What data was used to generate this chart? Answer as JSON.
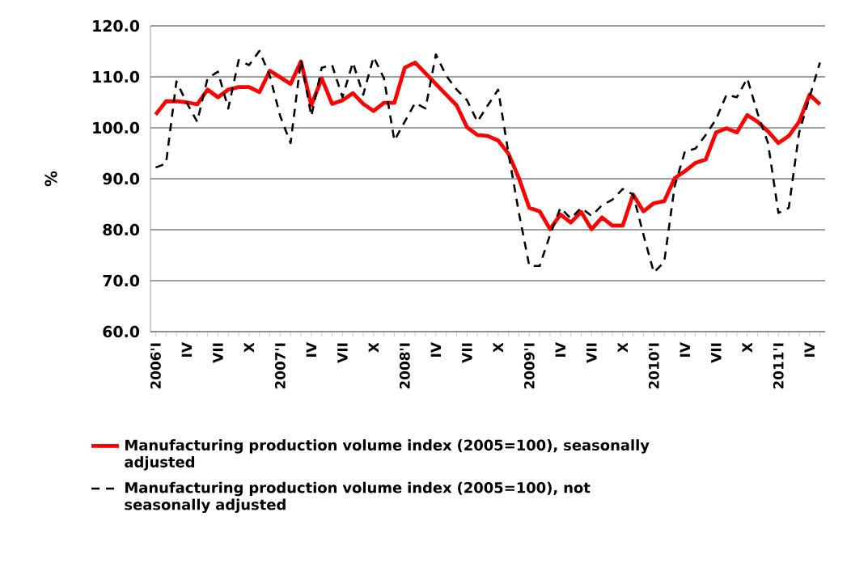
{
  "chart_data": {
    "type": "line",
    "ylabel": "%",
    "categories": [
      "2006'I",
      null,
      null,
      "IV",
      null,
      null,
      "VII",
      null,
      null,
      "X",
      null,
      null,
      "2007'I",
      null,
      null,
      "IV",
      null,
      null,
      "VII",
      null,
      null,
      "X",
      null,
      null,
      "2008'I",
      null,
      null,
      "IV",
      null,
      null,
      "VII",
      null,
      null,
      "X",
      null,
      null,
      "2009'I",
      null,
      null,
      "IV",
      null,
      null,
      "VII",
      null,
      null,
      "X",
      null,
      null,
      "2010'I",
      null,
      null,
      "IV",
      null,
      null,
      "VII",
      null,
      null,
      "X",
      null,
      null,
      "2011'I",
      null,
      null,
      "IV",
      null
    ],
    "series": [
      {
        "name": "Manufacturing production volume index (2005=100), seasonally adjusted",
        "color": "#ff0000",
        "line_style": "solid",
        "values": [
          102.6,
          105.2,
          105.2,
          105.0,
          104.6,
          107.5,
          106.0,
          107.5,
          108.0,
          108.0,
          107.0,
          111.2,
          109.9,
          108.6,
          113.0,
          104.4,
          109.7,
          104.7,
          105.4,
          106.8,
          104.7,
          103.3,
          104.9,
          104.9,
          111.8,
          112.8,
          110.7,
          108.6,
          106.5,
          104.4,
          100.1,
          98.6,
          98.4,
          97.5,
          94.9,
          90.1,
          84.3,
          83.6,
          80.1,
          83.0,
          81.4,
          83.5,
          80.1,
          82.4,
          80.8,
          80.8,
          86.9,
          83.6,
          85.2,
          85.6,
          90.1,
          91.5,
          93.1,
          93.8,
          99.1,
          99.9,
          99.1,
          102.5,
          101.2,
          99.3,
          97.0,
          98.4,
          101.2,
          106.5,
          104.6
        ]
      },
      {
        "name": "Manufacturing production volume index (2005=100),  not seasonally adjusted",
        "color": "#000000",
        "line_style": "dashed",
        "values": [
          92.2,
          93.0,
          109.1,
          104.9,
          101.2,
          109.7,
          111.0,
          103.8,
          113.3,
          112.3,
          115.1,
          110.2,
          102.3,
          97.0,
          113.3,
          102.3,
          111.8,
          112.3,
          106.0,
          112.8,
          106.5,
          113.9,
          109.7,
          97.5,
          101.2,
          104.9,
          103.8,
          114.4,
          110.2,
          107.5,
          105.4,
          101.2,
          104.4,
          107.5,
          94.9,
          83.3,
          72.9,
          72.9,
          79.0,
          84.3,
          82.2,
          84.3,
          82.7,
          84.8,
          85.9,
          88.0,
          86.9,
          79.0,
          71.6,
          73.7,
          88.5,
          95.4,
          95.9,
          98.6,
          101.7,
          106.5,
          106.0,
          109.7,
          102.8,
          97.0,
          83.3,
          84.3,
          99.1,
          106.0,
          112.8
        ]
      }
    ],
    "ylim": [
      60,
      120
    ],
    "yticks": [
      {
        "value": 60,
        "label": "60.0"
      },
      {
        "value": 70,
        "label": "70.0"
      },
      {
        "value": 80,
        "label": "80.0"
      },
      {
        "value": 90,
        "label": "90.0"
      },
      {
        "value": 100,
        "label": "100.0"
      },
      {
        "value": 110,
        "label": "110.0"
      },
      {
        "value": 120,
        "label": "120.0"
      }
    ],
    "grid": "y",
    "legend": "bottom"
  }
}
